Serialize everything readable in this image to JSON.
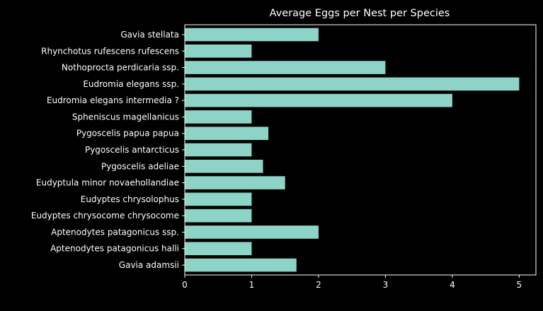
{
  "chart_data": {
    "type": "bar",
    "orientation": "horizontal",
    "title": "Average Eggs per Nest per Species",
    "xlabel": "",
    "ylabel": "",
    "xlim": [
      0,
      5.25
    ],
    "xticks": [
      0,
      1,
      2,
      3,
      4,
      5
    ],
    "grid": false,
    "background_color": "#000000",
    "text_color": "#ffffff",
    "bar_color": "#8dd3c7",
    "categories": [
      "Gavia stellata",
      "Rhynchotus rufescens rufescens",
      "Nothoprocta perdicaria ssp.",
      "Eudromia elegans ssp.",
      "Eudromia elegans intermedia ?",
      "Spheniscus magellanicus",
      "Pygoscelis papua papua",
      "Pygoscelis antarcticus",
      "Pygoscelis adeliae",
      "Eudyptula minor novaehollandiae",
      "Eudyptes chrysolophus",
      "Eudyptes chrysocome chrysocome",
      "Aptenodytes patagonicus ssp.",
      "Aptenodytes patagonicus halli",
      "Gavia adamsii"
    ],
    "values": [
      2.0,
      1.0,
      3.0,
      5.0,
      4.0,
      1.0,
      1.25,
      1.0,
      1.17,
      1.5,
      1.0,
      1.0,
      2.0,
      1.0,
      1.67
    ]
  }
}
